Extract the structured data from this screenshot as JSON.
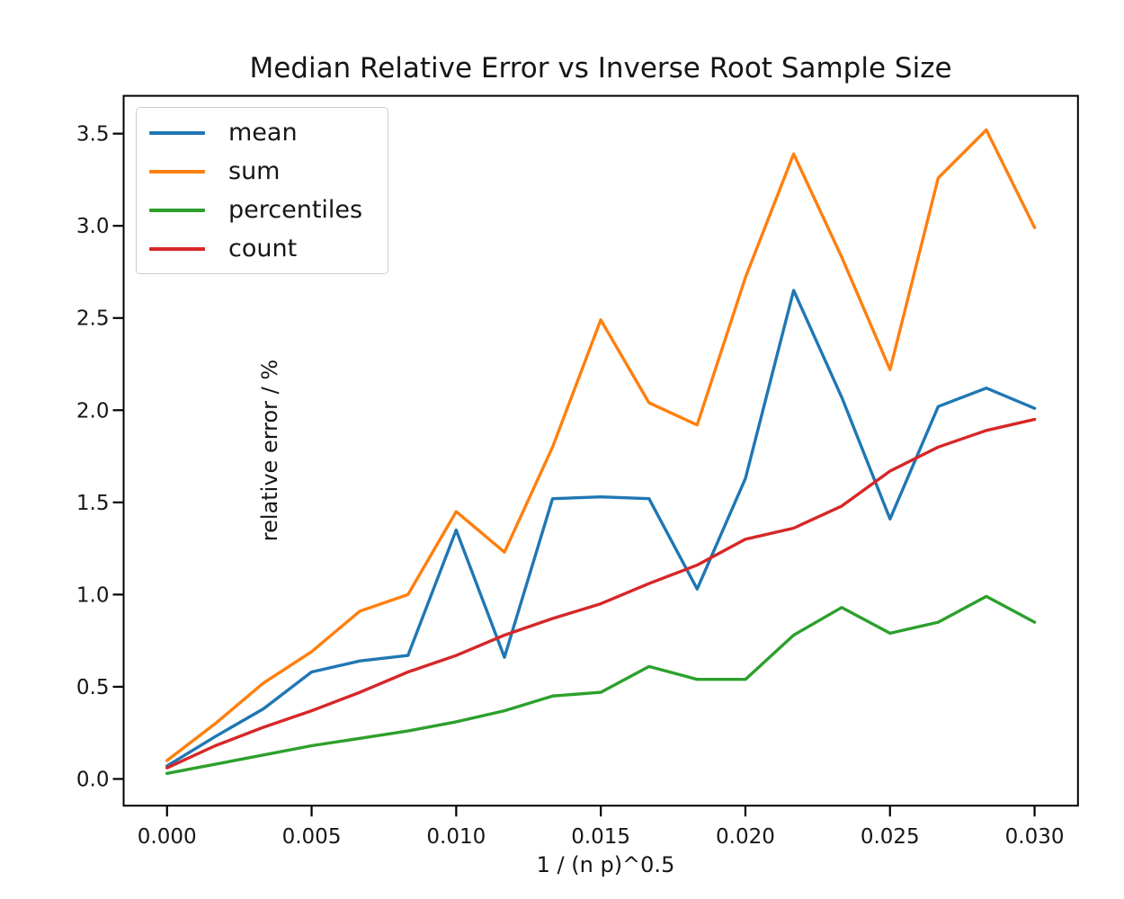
{
  "chart_data": {
    "type": "line",
    "title": "Median Relative Error vs Inverse Root Sample Size",
    "xlabel": "1 / (n p)^0.5",
    "ylabel": "relative error / %",
    "grid": false,
    "legend_position": "upper left",
    "x": [
      0.0,
      0.001667,
      0.003333,
      0.005,
      0.006667,
      0.008333,
      0.01,
      0.011667,
      0.013333,
      0.015,
      0.016667,
      0.018333,
      0.02,
      0.021667,
      0.023333,
      0.025,
      0.026667,
      0.028333,
      0.03
    ],
    "series": [
      {
        "name": "mean",
        "color": "#1f77b4",
        "values": [
          0.07,
          0.23,
          0.38,
          0.58,
          0.64,
          0.67,
          1.35,
          0.66,
          1.52,
          1.53,
          1.52,
          1.03,
          1.63,
          2.65,
          2.07,
          1.41,
          2.02,
          2.12,
          2.01
        ]
      },
      {
        "name": "sum",
        "color": "#ff7f0e",
        "values": [
          0.1,
          0.3,
          0.52,
          0.69,
          0.91,
          1.0,
          1.45,
          1.23,
          1.8,
          2.49,
          2.04,
          1.92,
          2.72,
          3.39,
          2.83,
          2.22,
          3.26,
          3.52,
          2.99
        ]
      },
      {
        "name": "percentiles",
        "color": "#2ca02c",
        "values": [
          0.03,
          0.08,
          0.13,
          0.18,
          0.22,
          0.26,
          0.31,
          0.37,
          0.45,
          0.47,
          0.61,
          0.54,
          0.54,
          0.78,
          0.93,
          0.79,
          0.85,
          0.99,
          0.85
        ]
      },
      {
        "name": "count",
        "color": "#d62728",
        "values": [
          0.06,
          0.18,
          0.28,
          0.37,
          0.47,
          0.58,
          0.67,
          0.78,
          0.87,
          0.95,
          1.06,
          1.16,
          1.3,
          1.36,
          1.48,
          1.67,
          1.8,
          1.89,
          1.95
        ]
      }
    ],
    "xlim": [
      -0.0015,
      0.0315
    ],
    "ylim": [
      -0.145,
      3.705
    ],
    "xticks": {
      "values": [
        0.0,
        0.005,
        0.01,
        0.015,
        0.02,
        0.025,
        0.03
      ],
      "labels": [
        "0.000",
        "0.005",
        "0.010",
        "0.015",
        "0.020",
        "0.025",
        "0.030"
      ]
    },
    "yticks": {
      "values": [
        0.0,
        0.5,
        1.0,
        1.5,
        2.0,
        2.5,
        3.0,
        3.5
      ],
      "labels": [
        "0.0",
        "0.5",
        "1.0",
        "1.5",
        "2.0",
        "2.5",
        "3.0",
        "3.5"
      ]
    }
  }
}
